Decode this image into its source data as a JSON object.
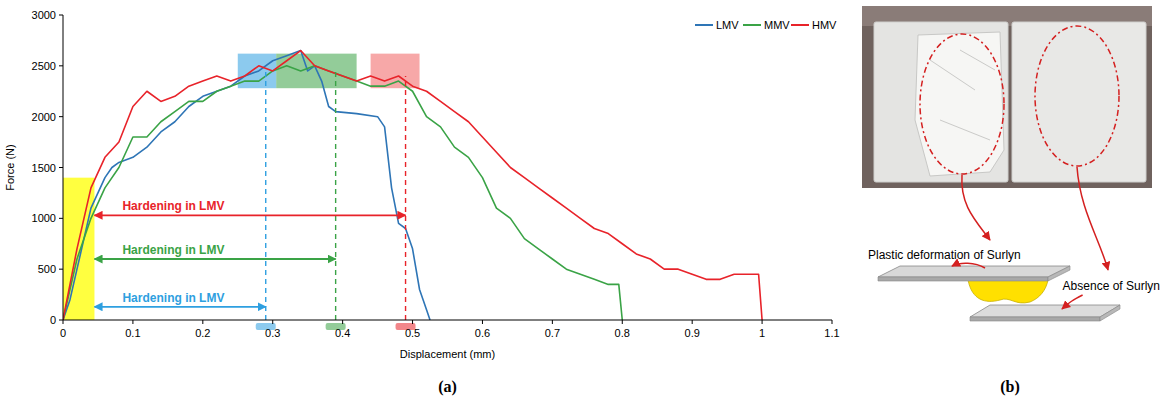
{
  "chart_data": {
    "type": "line",
    "panel_label": "(a)",
    "x_label": "Displacement (mm)",
    "y_label": "Force (N)",
    "xlim": [
      0,
      1.1
    ],
    "ylim": [
      0,
      3000
    ],
    "xticks": [
      0,
      0.1,
      0.2,
      0.3,
      0.4,
      0.5,
      0.6,
      0.7,
      0.8,
      0.9,
      1,
      1.1
    ],
    "yticks": [
      0,
      500,
      1000,
      1500,
      2000,
      2500,
      3000
    ],
    "grid": false,
    "legend": "top-right",
    "series": [
      {
        "name": "LMV",
        "color": "#2e75b6",
        "x": [
          0,
          0.01,
          0.02,
          0.03,
          0.04,
          0.05,
          0.06,
          0.07,
          0.08,
          0.1,
          0.12,
          0.14,
          0.16,
          0.18,
          0.2,
          0.22,
          0.24,
          0.26,
          0.28,
          0.3,
          0.32,
          0.34,
          0.35,
          0.36,
          0.37,
          0.38,
          0.39,
          0.42,
          0.45,
          0.46,
          0.47,
          0.48,
          0.49,
          0.5,
          0.51,
          0.52,
          0.525
        ],
        "values": [
          0,
          200,
          500,
          800,
          1100,
          1250,
          1400,
          1500,
          1550,
          1600,
          1700,
          1850,
          1950,
          2100,
          2200,
          2250,
          2300,
          2400,
          2450,
          2550,
          2600,
          2650,
          2450,
          2500,
          2350,
          2100,
          2050,
          2030,
          2000,
          1900,
          1300,
          950,
          900,
          700,
          300,
          100,
          0
        ]
      },
      {
        "name": "MMV",
        "color": "#3aa346",
        "x": [
          0,
          0.02,
          0.04,
          0.05,
          0.06,
          0.08,
          0.1,
          0.12,
          0.14,
          0.16,
          0.18,
          0.2,
          0.22,
          0.24,
          0.26,
          0.28,
          0.3,
          0.32,
          0.34,
          0.36,
          0.38,
          0.4,
          0.42,
          0.44,
          0.46,
          0.48,
          0.5,
          0.52,
          0.54,
          0.56,
          0.58,
          0.6,
          0.62,
          0.64,
          0.66,
          0.68,
          0.7,
          0.72,
          0.74,
          0.76,
          0.78,
          0.795,
          0.8
        ],
        "values": [
          0,
          600,
          1000,
          1150,
          1300,
          1500,
          1800,
          1800,
          1950,
          2050,
          2150,
          2150,
          2250,
          2300,
          2350,
          2350,
          2450,
          2500,
          2450,
          2500,
          2450,
          2400,
          2350,
          2300,
          2300,
          2350,
          2250,
          2000,
          1900,
          1700,
          1600,
          1400,
          1100,
          1000,
          800,
          700,
          600,
          500,
          450,
          400,
          350,
          350,
          0
        ]
      },
      {
        "name": "HMV",
        "color": "#e8232a",
        "x": [
          0,
          0.02,
          0.04,
          0.05,
          0.06,
          0.08,
          0.1,
          0.12,
          0.14,
          0.16,
          0.18,
          0.2,
          0.22,
          0.24,
          0.26,
          0.28,
          0.3,
          0.32,
          0.34,
          0.36,
          0.38,
          0.4,
          0.42,
          0.44,
          0.46,
          0.48,
          0.5,
          0.52,
          0.54,
          0.56,
          0.58,
          0.6,
          0.62,
          0.64,
          0.66,
          0.68,
          0.7,
          0.72,
          0.74,
          0.76,
          0.78,
          0.8,
          0.82,
          0.84,
          0.86,
          0.88,
          0.9,
          0.92,
          0.94,
          0.96,
          0.98,
          0.995,
          1.0
        ],
        "values": [
          0,
          700,
          1300,
          1450,
          1600,
          1750,
          2100,
          2250,
          2150,
          2200,
          2300,
          2350,
          2400,
          2350,
          2400,
          2500,
          2450,
          2550,
          2650,
          2500,
          2450,
          2400,
          2350,
          2400,
          2350,
          2400,
          2300,
          2250,
          2150,
          2050,
          1950,
          1800,
          1650,
          1500,
          1400,
          1300,
          1200,
          1100,
          1000,
          900,
          850,
          750,
          650,
          600,
          500,
          500,
          450,
          400,
          400,
          450,
          450,
          450,
          0
        ]
      }
    ],
    "shaded_regions": [
      {
        "x": [
          0,
          0.045
        ],
        "y": [
          0,
          1400
        ],
        "color": "#ffff00"
      },
      {
        "x": [
          0.25,
          0.305
        ],
        "y": [
          2280,
          2620
        ],
        "color": "#2e9fe0"
      },
      {
        "x": [
          0.305,
          0.42
        ],
        "y": [
          2280,
          2620
        ],
        "color": "#3aa346"
      },
      {
        "x": [
          0.44,
          0.51
        ],
        "y": [
          2280,
          2620
        ],
        "color": "#f06060"
      }
    ],
    "dashed_lines": [
      {
        "x": 0.29,
        "y_top": 2450,
        "color": "#2e9fe0"
      },
      {
        "x": 0.39,
        "y_top": 2450,
        "color": "#3aa346"
      },
      {
        "x": 0.49,
        "y_top": 2400,
        "color": "#e8232a"
      }
    ],
    "annotations": [
      {
        "text": "Hardening in LMV",
        "x_start": 0.045,
        "x_end": 0.49,
        "y": 1030,
        "color": "#e8232a"
      },
      {
        "text": "Hardening in LMV",
        "x_start": 0.045,
        "x_end": 0.39,
        "y": 600,
        "color": "#3aa346"
      },
      {
        "text": "Hardening in LMV",
        "x_start": 0.045,
        "x_end": 0.29,
        "y": 130,
        "color": "#2e9fe0"
      }
    ]
  },
  "panel_b": {
    "panel_label": "(b)",
    "labels": [
      "Plastic deformation of Surlyn",
      "Absence of Surlyn"
    ]
  }
}
